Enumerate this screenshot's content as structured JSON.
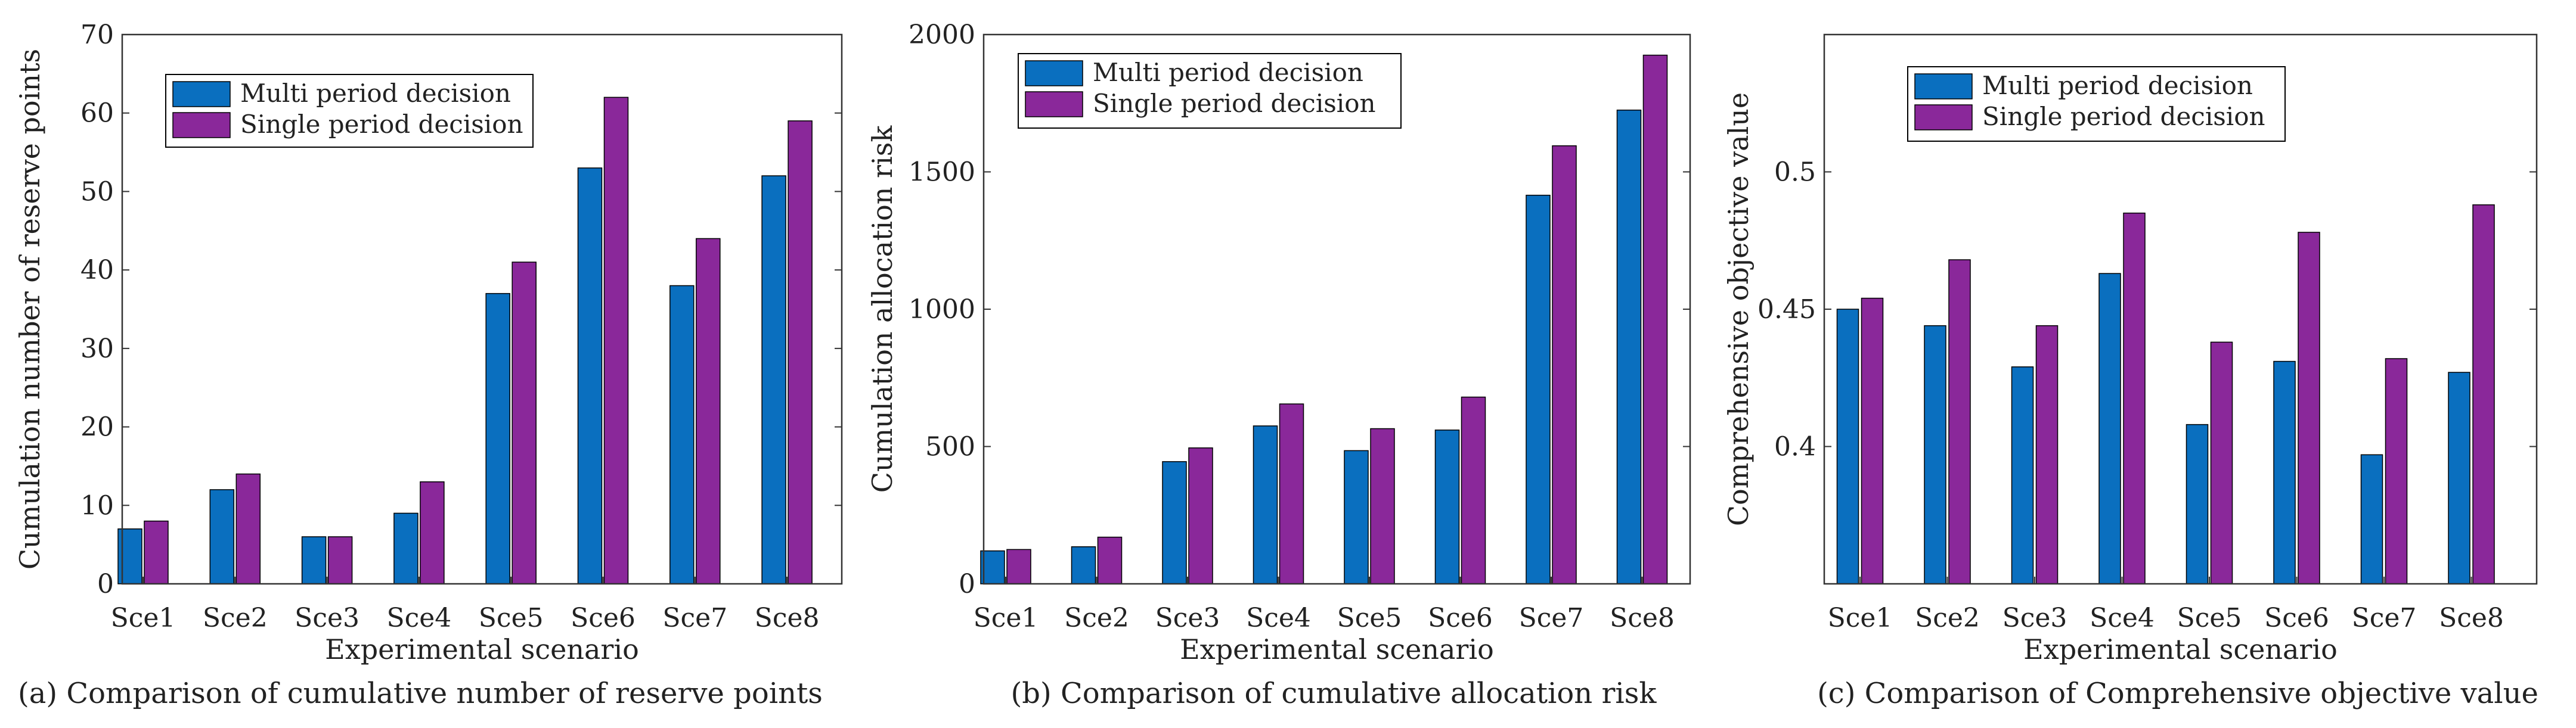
{
  "colors": {
    "multi": "#0a6fbf",
    "single": "#8a289a",
    "axis": "#333333",
    "text": "#222222"
  },
  "chart_data": [
    {
      "type": "bar",
      "title": "(a) Comparison of cumulative number of reserve points",
      "xlabel": "Experimental scenario",
      "ylabel": "Cumulation number of reserve points",
      "categories": [
        "Sce1",
        "Sce2",
        "Sce3",
        "Sce4",
        "Sce5",
        "Sce6",
        "Sce7",
        "Sce8"
      ],
      "ylim": [
        0,
        70
      ],
      "yticks": [
        0,
        10,
        20,
        30,
        40,
        50,
        60,
        70
      ],
      "ytick_labels": [
        "0",
        "10",
        "20",
        "30",
        "40",
        "50",
        "60",
        "70"
      ],
      "legend_position": "top-left",
      "series": [
        {
          "name": "Multi period decision",
          "values": [
            7,
            12,
            6,
            9,
            37,
            53,
            38,
            52
          ]
        },
        {
          "name": "Single period decision",
          "values": [
            8,
            14,
            6,
            13,
            41,
            62,
            44,
            59
          ]
        }
      ]
    },
    {
      "type": "bar",
      "title": "(b) Comparison of cumulative allocation risk",
      "xlabel": "Experimental scenario",
      "ylabel": "Cumulation allocation risk",
      "categories": [
        "Sce1",
        "Sce2",
        "Sce3",
        "Sce4",
        "Sce5",
        "Sce6",
        "Sce7",
        "Sce8"
      ],
      "ylim": [
        0,
        2000
      ],
      "yticks": [
        0,
        500,
        1000,
        1500,
        2000
      ],
      "ytick_labels": [
        "0",
        "500",
        "1000",
        "1500",
        "2000"
      ],
      "legend_position": "top-left",
      "series": [
        {
          "name": "Multi period decision",
          "values": [
            120,
            135,
            445,
            575,
            485,
            560,
            1415,
            1725
          ]
        },
        {
          "name": "Single period decision",
          "values": [
            125,
            170,
            495,
            655,
            565,
            680,
            1595,
            1925
          ]
        }
      ]
    },
    {
      "type": "bar",
      "title": "(c) Comparison of Comprehensive objective value",
      "xlabel": "Experimental scenario",
      "ylabel": "Comprehensive objective value",
      "categories": [
        "Sce1",
        "Sce2",
        "Sce3",
        "Sce4",
        "Sce5",
        "Sce6",
        "Sce7",
        "Sce8"
      ],
      "ylim": [
        0.35,
        0.55
      ],
      "yticks": [
        0.4,
        0.45,
        0.5
      ],
      "ytick_labels": [
        "0.4",
        "0.45",
        "0.5"
      ],
      "legend_position": "top-left",
      "series": [
        {
          "name": "Multi period decision",
          "values": [
            0.45,
            0.444,
            0.429,
            0.463,
            0.408,
            0.431,
            0.397,
            0.427
          ]
        },
        {
          "name": "Single period decision",
          "values": [
            0.454,
            0.468,
            0.444,
            0.485,
            0.438,
            0.478,
            0.432,
            0.488
          ]
        }
      ]
    }
  ]
}
